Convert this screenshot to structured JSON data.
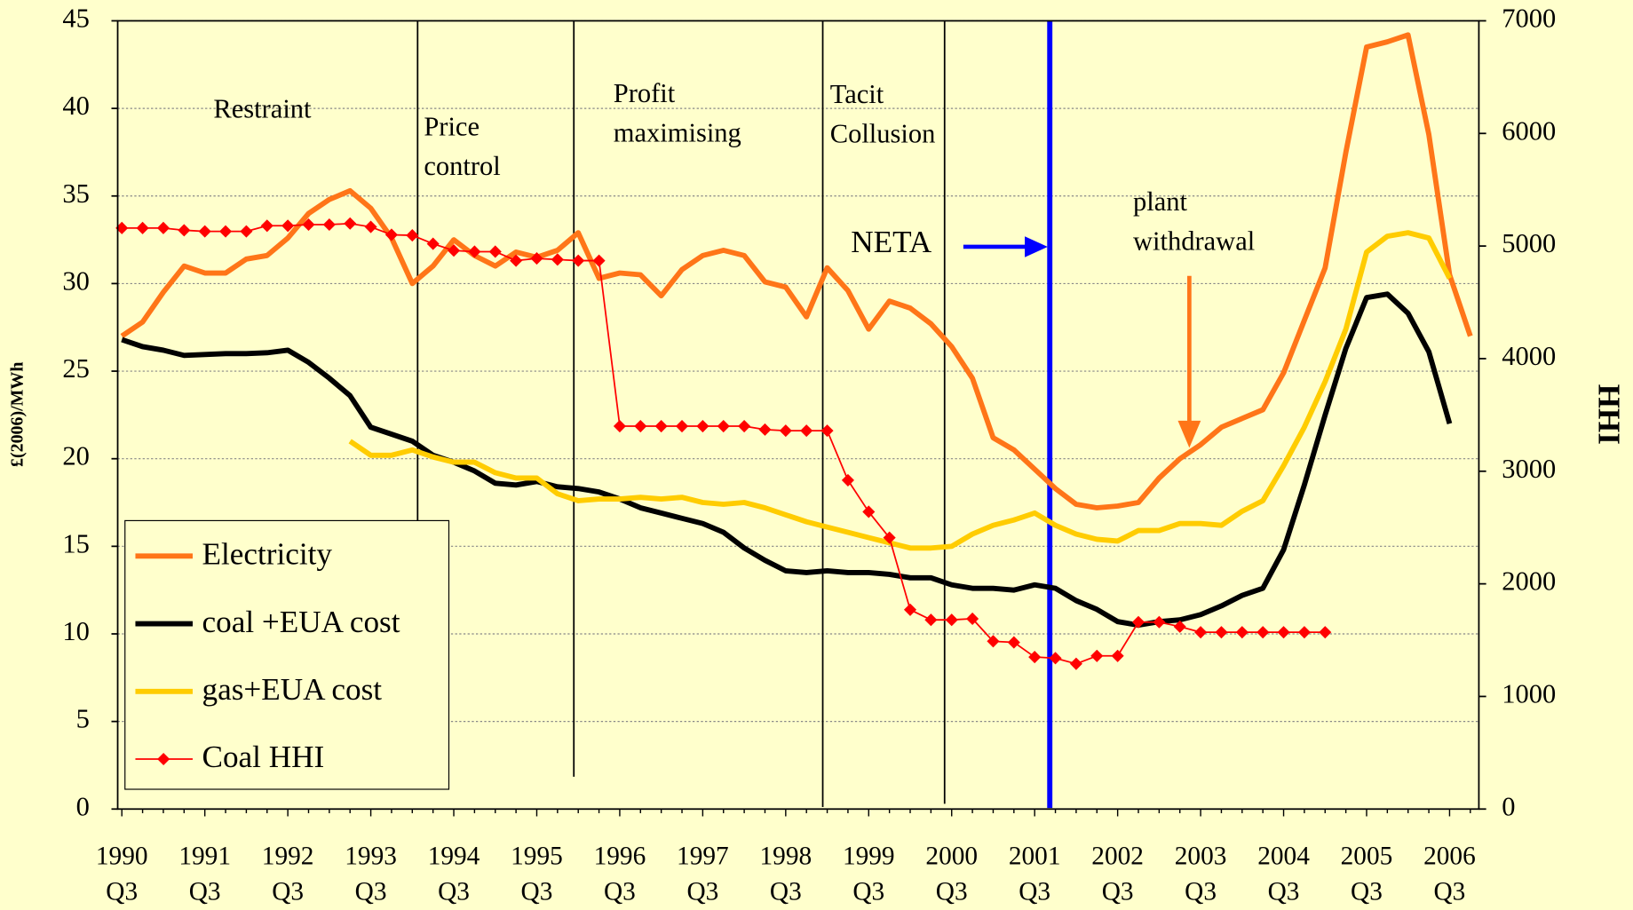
{
  "chart_data": {
    "type": "line",
    "y_label": "£(2006)/MWh",
    "y2_label": "HHI",
    "annotations": [
      "Restraint",
      "Price\ncontrol",
      "Profit\nmaximising",
      "Tacit\nCollusion",
      "NETA",
      "plant\nwithdrawal"
    ],
    "categories": [
      "1990\nQ3",
      null,
      null,
      null,
      "1991\nQ3",
      null,
      null,
      null,
      "1992\nQ3",
      null,
      null,
      null,
      "1993\nQ3",
      null,
      null,
      null,
      "1994\nQ3",
      null,
      null,
      null,
      "1995\nQ3",
      null,
      null,
      null,
      "1996\nQ3",
      null,
      null,
      null,
      "1997\nQ3",
      null,
      null,
      null,
      "1998\nQ3",
      null,
      null,
      null,
      "1999\nQ3",
      null,
      null,
      null,
      "2000\nQ3",
      null,
      null,
      null,
      "2001\nQ3",
      null,
      null,
      null,
      "2002\nQ3",
      null,
      null,
      null,
      "2003\nQ3",
      null,
      null,
      null,
      "2004\nQ3",
      null,
      null,
      null,
      "2005\nQ3",
      null,
      null,
      null,
      "2006\nQ3",
      null
    ],
    "series": [
      {
        "name": "Electricity",
        "color": "#ff7518",
        "values": [
          27.0,
          27.8,
          29.5,
          31.0,
          30.6,
          30.6,
          31.4,
          31.6,
          32.6,
          34.0,
          34.8,
          35.3,
          34.3,
          32.6,
          30.0,
          31.0,
          32.5,
          31.6,
          31.0,
          31.8,
          31.5,
          31.9,
          32.9,
          30.3,
          30.6,
          30.5,
          29.3,
          30.8,
          31.6,
          31.9,
          31.6,
          30.1,
          29.8,
          28.1,
          30.9,
          29.6,
          27.4,
          29.0,
          28.6,
          27.7,
          26.4,
          24.6,
          21.2,
          20.5,
          19.4,
          18.3,
          17.4,
          17.2,
          17.3,
          17.5,
          18.9,
          20.0,
          20.8,
          21.8,
          22.3,
          22.8,
          24.9,
          27.9,
          30.9,
          37.5,
          43.5,
          43.8,
          44.2,
          38.5,
          30.5,
          27.0
        ]
      },
      {
        "name": "coal +EUA cost",
        "color": "#000000",
        "values": [
          26.8,
          26.4,
          26.2,
          25.9,
          25.95,
          26.0,
          26.0,
          26.05,
          26.2,
          25.5,
          24.6,
          23.6,
          21.8,
          21.4,
          21.0,
          20.2,
          19.8,
          19.3,
          18.6,
          18.5,
          18.7,
          18.4,
          18.3,
          18.1,
          17.7,
          17.2,
          16.9,
          16.6,
          16.3,
          15.8,
          14.9,
          14.2,
          13.6,
          13.5,
          13.6,
          13.5,
          13.5,
          13.4,
          13.2,
          13.2,
          12.8,
          12.6,
          12.6,
          12.5,
          12.8,
          12.6,
          11.9,
          11.4,
          10.7,
          10.5,
          10.7,
          10.8,
          11.1,
          11.6,
          12.2,
          12.6,
          14.8,
          18.5,
          22.5,
          26.3,
          29.2,
          29.4,
          28.3,
          26.1,
          22.0,
          null
        ]
      },
      {
        "name": "gas+EUA cost",
        "color": "#ffcc00",
        "values": [
          null,
          null,
          null,
          null,
          null,
          null,
          null,
          null,
          null,
          null,
          null,
          21.0,
          20.2,
          20.2,
          20.5,
          20.1,
          19.8,
          19.8,
          19.2,
          18.9,
          18.9,
          18.0,
          17.6,
          17.7,
          17.7,
          17.8,
          17.7,
          17.8,
          17.5,
          17.4,
          17.5,
          17.2,
          16.8,
          16.4,
          16.1,
          15.8,
          15.5,
          15.2,
          14.9,
          14.9,
          15.0,
          15.7,
          16.2,
          16.5,
          16.9,
          16.2,
          15.7,
          15.4,
          15.3,
          15.9,
          15.9,
          16.3,
          16.3,
          16.2,
          17.0,
          17.6,
          19.6,
          21.8,
          24.4,
          27.4,
          31.8,
          32.7,
          32.9,
          32.6,
          30.3,
          null
        ]
      },
      {
        "name": "Coal HHI",
        "color": "#ff0000",
        "axis": "y2",
        "marker": "diamond",
        "values": [
          5160,
          5160,
          5160,
          5140,
          5130,
          5130,
          5130,
          5180,
          5180,
          5190,
          5190,
          5200,
          5170,
          5100,
          5095,
          5020,
          4960,
          4950,
          4950,
          4870,
          4890,
          4880,
          4870,
          4870,
          3400,
          3400,
          3400,
          3400,
          3400,
          3400,
          3400,
          3370,
          3360,
          3360,
          3360,
          2920,
          2640,
          2410,
          1770,
          1680,
          1680,
          1690,
          1490,
          1480,
          1350,
          1340,
          1290,
          1360,
          1360,
          1660,
          1660,
          1620,
          1570,
          1570,
          1570,
          1570,
          1570,
          1570,
          1570,
          null,
          null,
          null,
          null,
          null,
          null,
          null
        ]
      }
    ],
    "ylim": [
      0,
      45
    ],
    "yticks": [
      0,
      5,
      10,
      15,
      20,
      25,
      30,
      35,
      40,
      45
    ],
    "y2lim": [
      0,
      7000
    ],
    "y2ticks": [
      0,
      1000,
      2000,
      3000,
      4000,
      5000,
      6000,
      7000
    ],
    "grid": true,
    "legend": "lower left"
  }
}
